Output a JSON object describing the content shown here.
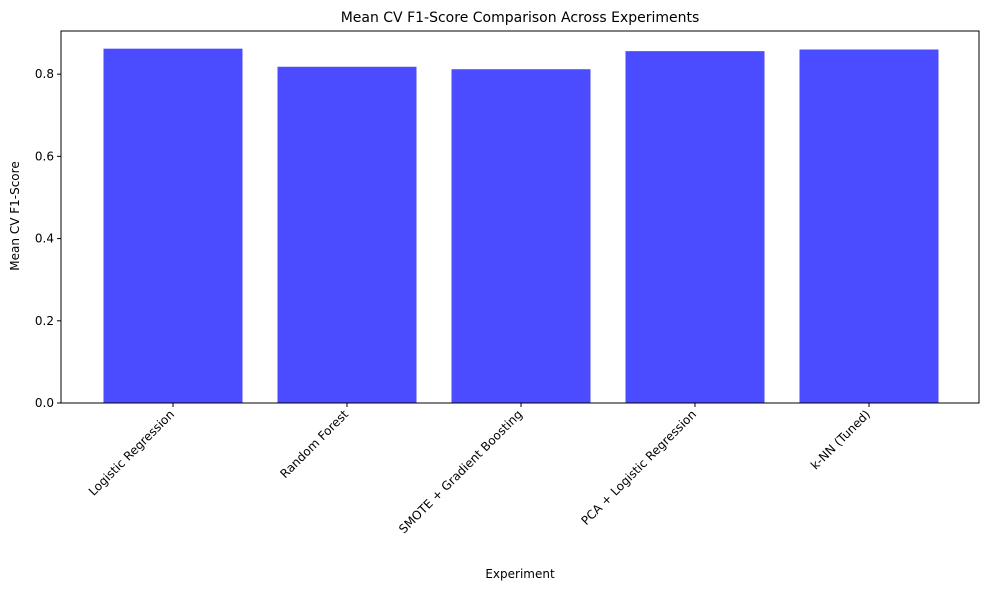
{
  "chart_data": {
    "type": "bar",
    "title": "Mean CV F1-Score Comparison Across Experiments",
    "xlabel": "Experiment",
    "ylabel": "Mean CV F1-Score",
    "categories": [
      "Logistic Regression",
      "Random Forest",
      "SMOTE + Gradient Boosting",
      "PCA + Logistic Regression",
      "k-NN (Tuned)"
    ],
    "values": [
      0.862,
      0.818,
      0.812,
      0.856,
      0.86
    ],
    "ylim": [
      0,
      0.905
    ],
    "yticks": [
      "0.0",
      "0.2",
      "0.4",
      "0.6",
      "0.8"
    ],
    "bar_color": "#4b4bff",
    "grid": false,
    "legend": "none"
  }
}
